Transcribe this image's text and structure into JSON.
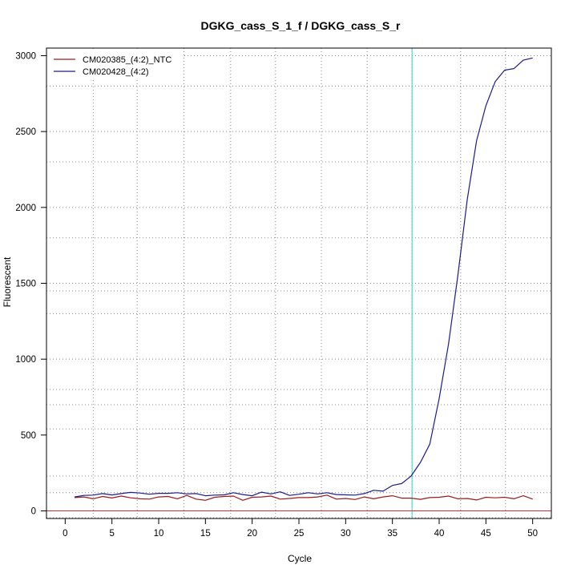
{
  "chart_data": {
    "type": "line",
    "title": "DGKG_cass_S_1_f / DGKG_cass_S_r",
    "xlabel": "Cycle",
    "ylabel": "Fluorescent",
    "xlim": [
      -2,
      52
    ],
    "ylim": [
      -50,
      3050
    ],
    "xticks": [
      0,
      5,
      10,
      15,
      20,
      25,
      30,
      35,
      40,
      45,
      50
    ],
    "yticks": [
      0,
      500,
      1000,
      1500,
      2000,
      2500,
      3000
    ],
    "grid": true,
    "grid_x_values": [
      3,
      7.7,
      12.7,
      17.7,
      22.5,
      27.4,
      32.3,
      37.1,
      42.3,
      47.1
    ],
    "grid_y_values": [
      -45,
      120,
      230,
      540,
      700,
      800,
      1000,
      1300,
      1450,
      1500,
      1800,
      2000,
      2300,
      2500,
      2800,
      3000
    ],
    "threshold_x": 37.1,
    "baseline_y": 0,
    "legend_position": "top-left",
    "colors": {
      "ntc": "#9b1c1c",
      "sample": "#1c1c8c",
      "threshold": "#40e0d0",
      "baseline": "#c83232",
      "grid": "#888888"
    },
    "x": [
      1,
      2,
      3,
      4,
      5,
      6,
      7,
      8,
      9,
      10,
      11,
      12,
      13,
      14,
      15,
      16,
      17,
      18,
      19,
      20,
      21,
      22,
      23,
      24,
      25,
      26,
      27,
      28,
      29,
      30,
      31,
      32,
      33,
      34,
      35,
      36,
      37,
      38,
      39,
      40,
      41,
      42,
      43,
      44,
      45,
      46,
      47,
      48,
      49,
      50
    ],
    "series": [
      {
        "name": "CM020385_(4:2)_NTC",
        "values": [
          88,
          92,
          80,
          95,
          85,
          98,
          86,
          80,
          78,
          92,
          95,
          80,
          102,
          78,
          70,
          90,
          95,
          98,
          70,
          90,
          92,
          98,
          78,
          82,
          88,
          88,
          92,
          104,
          78,
          82,
          75,
          92,
          80,
          92,
          100,
          84,
          84,
          76,
          88,
          90,
          98,
          80,
          82,
          72,
          90,
          86,
          90,
          80,
          100,
          78
        ]
      },
      {
        "name": "CM020428_(4:2)",
        "values": [
          92,
          102,
          104,
          114,
          105,
          114,
          122,
          118,
          110,
          116,
          116,
          120,
          112,
          114,
          100,
          104,
          106,
          120,
          108,
          100,
          124,
          112,
          126,
          102,
          110,
          120,
          112,
          120,
          108,
          106,
          104,
          114,
          136,
          130,
          168,
          180,
          230,
          320,
          440,
          740,
          1100,
          1550,
          2050,
          2440,
          2670,
          2830,
          2905,
          2915,
          2970,
          2985
        ]
      }
    ]
  }
}
